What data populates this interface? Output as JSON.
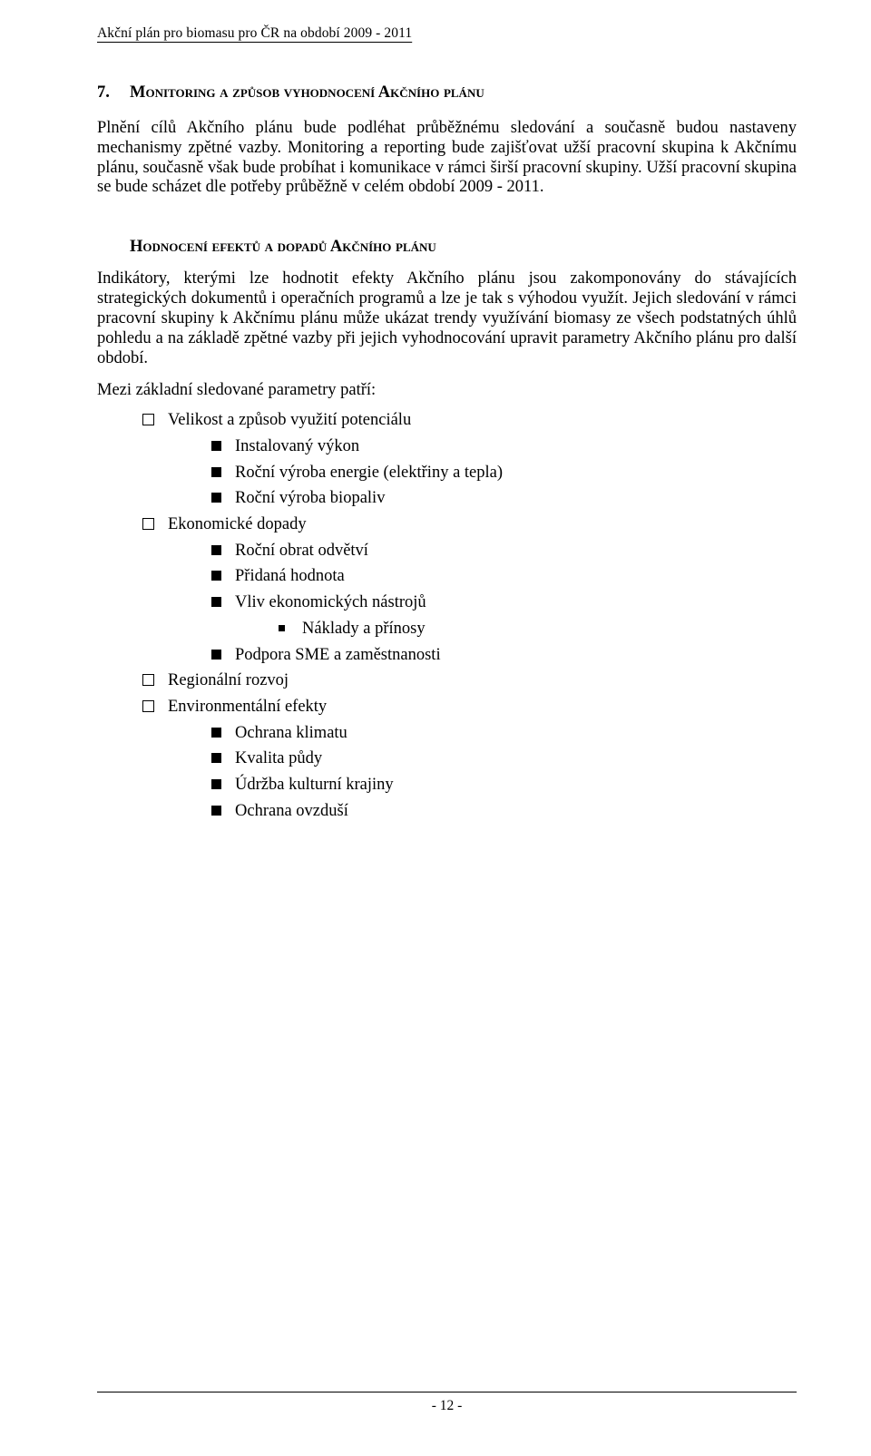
{
  "colors": {
    "text": "#000000",
    "background": "#ffffff",
    "rule": "#000000"
  },
  "typography": {
    "family": "Times New Roman",
    "body_size_pt": 14,
    "header_size_pt": 12,
    "heading_size_pt": 14,
    "heading_weight": "bold"
  },
  "header": {
    "running_head": "Akční plán pro biomasu pro ČR na období 2009 - 2011"
  },
  "section": {
    "number": "7.",
    "title": "Monitoring a způsob vyhodnocení Akčního plánu",
    "para1": "Plnění cílů Akčního plánu bude podléhat průběžnému sledování a současně budou nastaveny mechanismy zpětné vazby. Monitoring a reporting bude zajišťovat užší pracovní skupina k Akčnímu plánu, současně však bude probíhat i komunikace v rámci širší pracovní skupiny. Užší pracovní skupina se bude scházet dle potřeby průběžně v celém období 2009 - 2011."
  },
  "subsection": {
    "title": "Hodnocení efektů a dopadů Akčního plánu",
    "para1": "Indikátory, kterými lze hodnotit efekty Akčního plánu jsou zakomponovány do stávajících strategických dokumentů i operačních programů a lze je tak s výhodou využít. Jejich sledování v rámci pracovní skupiny k Akčnímu plánu může ukázat trendy využívání biomasy ze všech podstatných úhlů pohledu a na základě zpětné vazby při jejich vyhodnocování upravit parametry Akčního plánu pro další období.",
    "list_intro": "Mezi základní sledované parametry patří:",
    "items": [
      {
        "label": "Velikost a způsob využití potenciálu",
        "children": [
          {
            "label": "Instalovaný výkon"
          },
          {
            "label": "Roční výroba energie (elektřiny a tepla)"
          },
          {
            "label": "Roční výroba biopaliv"
          }
        ]
      },
      {
        "label": "Ekonomické dopady",
        "children": [
          {
            "label": "Roční obrat odvětví"
          },
          {
            "label": "Přidaná hodnota"
          },
          {
            "label": "Vliv ekonomických nástrojů",
            "children": [
              {
                "label": "Náklady a přínosy"
              }
            ]
          },
          {
            "label": "Podpora SME a zaměstnanosti"
          }
        ]
      },
      {
        "label": "Regionální rozvoj"
      },
      {
        "label": "Environmentální efekty",
        "children": [
          {
            "label": "Ochrana klimatu"
          },
          {
            "label": "Kvalita půdy"
          },
          {
            "label": "Údržba kulturní krajiny"
          },
          {
            "label": "Ochrana ovzduší"
          }
        ]
      }
    ]
  },
  "footer": {
    "page_label": "- 12 -"
  }
}
